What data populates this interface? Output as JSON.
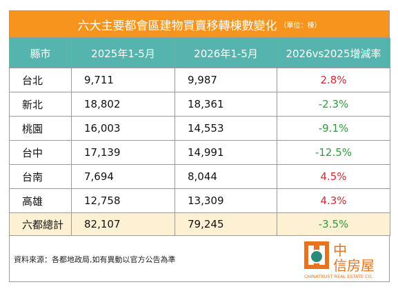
{
  "header": {
    "title": "六大主要都會區建物買賣移轉棟數變化",
    "unit": "（單位：棟）"
  },
  "table": {
    "columns": [
      "縣市",
      "2025年1-5月",
      "2026年1-5月",
      "2026vs2025增減率"
    ],
    "rows": [
      [
        "台北",
        "9,711",
        "9,987",
        "2.8%"
      ],
      [
        "新北",
        "18,802",
        "18,361",
        "-2.3%"
      ],
      [
        "桃園",
        "16,003",
        "14,553",
        "-9.1%"
      ],
      [
        "台中",
        "17,139",
        "14,991",
        "-12.5%"
      ],
      [
        "台南",
        "7,694",
        "8,044",
        "4.5%"
      ],
      [
        "高雄",
        "12,758",
        "13,309",
        "4.3%"
      ]
    ],
    "total": [
      "六都總計",
      "82,107",
      "79,245",
      "-3.5%"
    ],
    "increase_color": "#d0282e",
    "decrease_color": "#2e9a3a"
  },
  "footer": {
    "source": "資料來源：各都地政局,如有異動以官方公告為準"
  },
  "logo": {
    "line1": "中",
    "line2": "信房屋",
    "subtitle": "CHINATRUST REAL ESTATE CO."
  }
}
